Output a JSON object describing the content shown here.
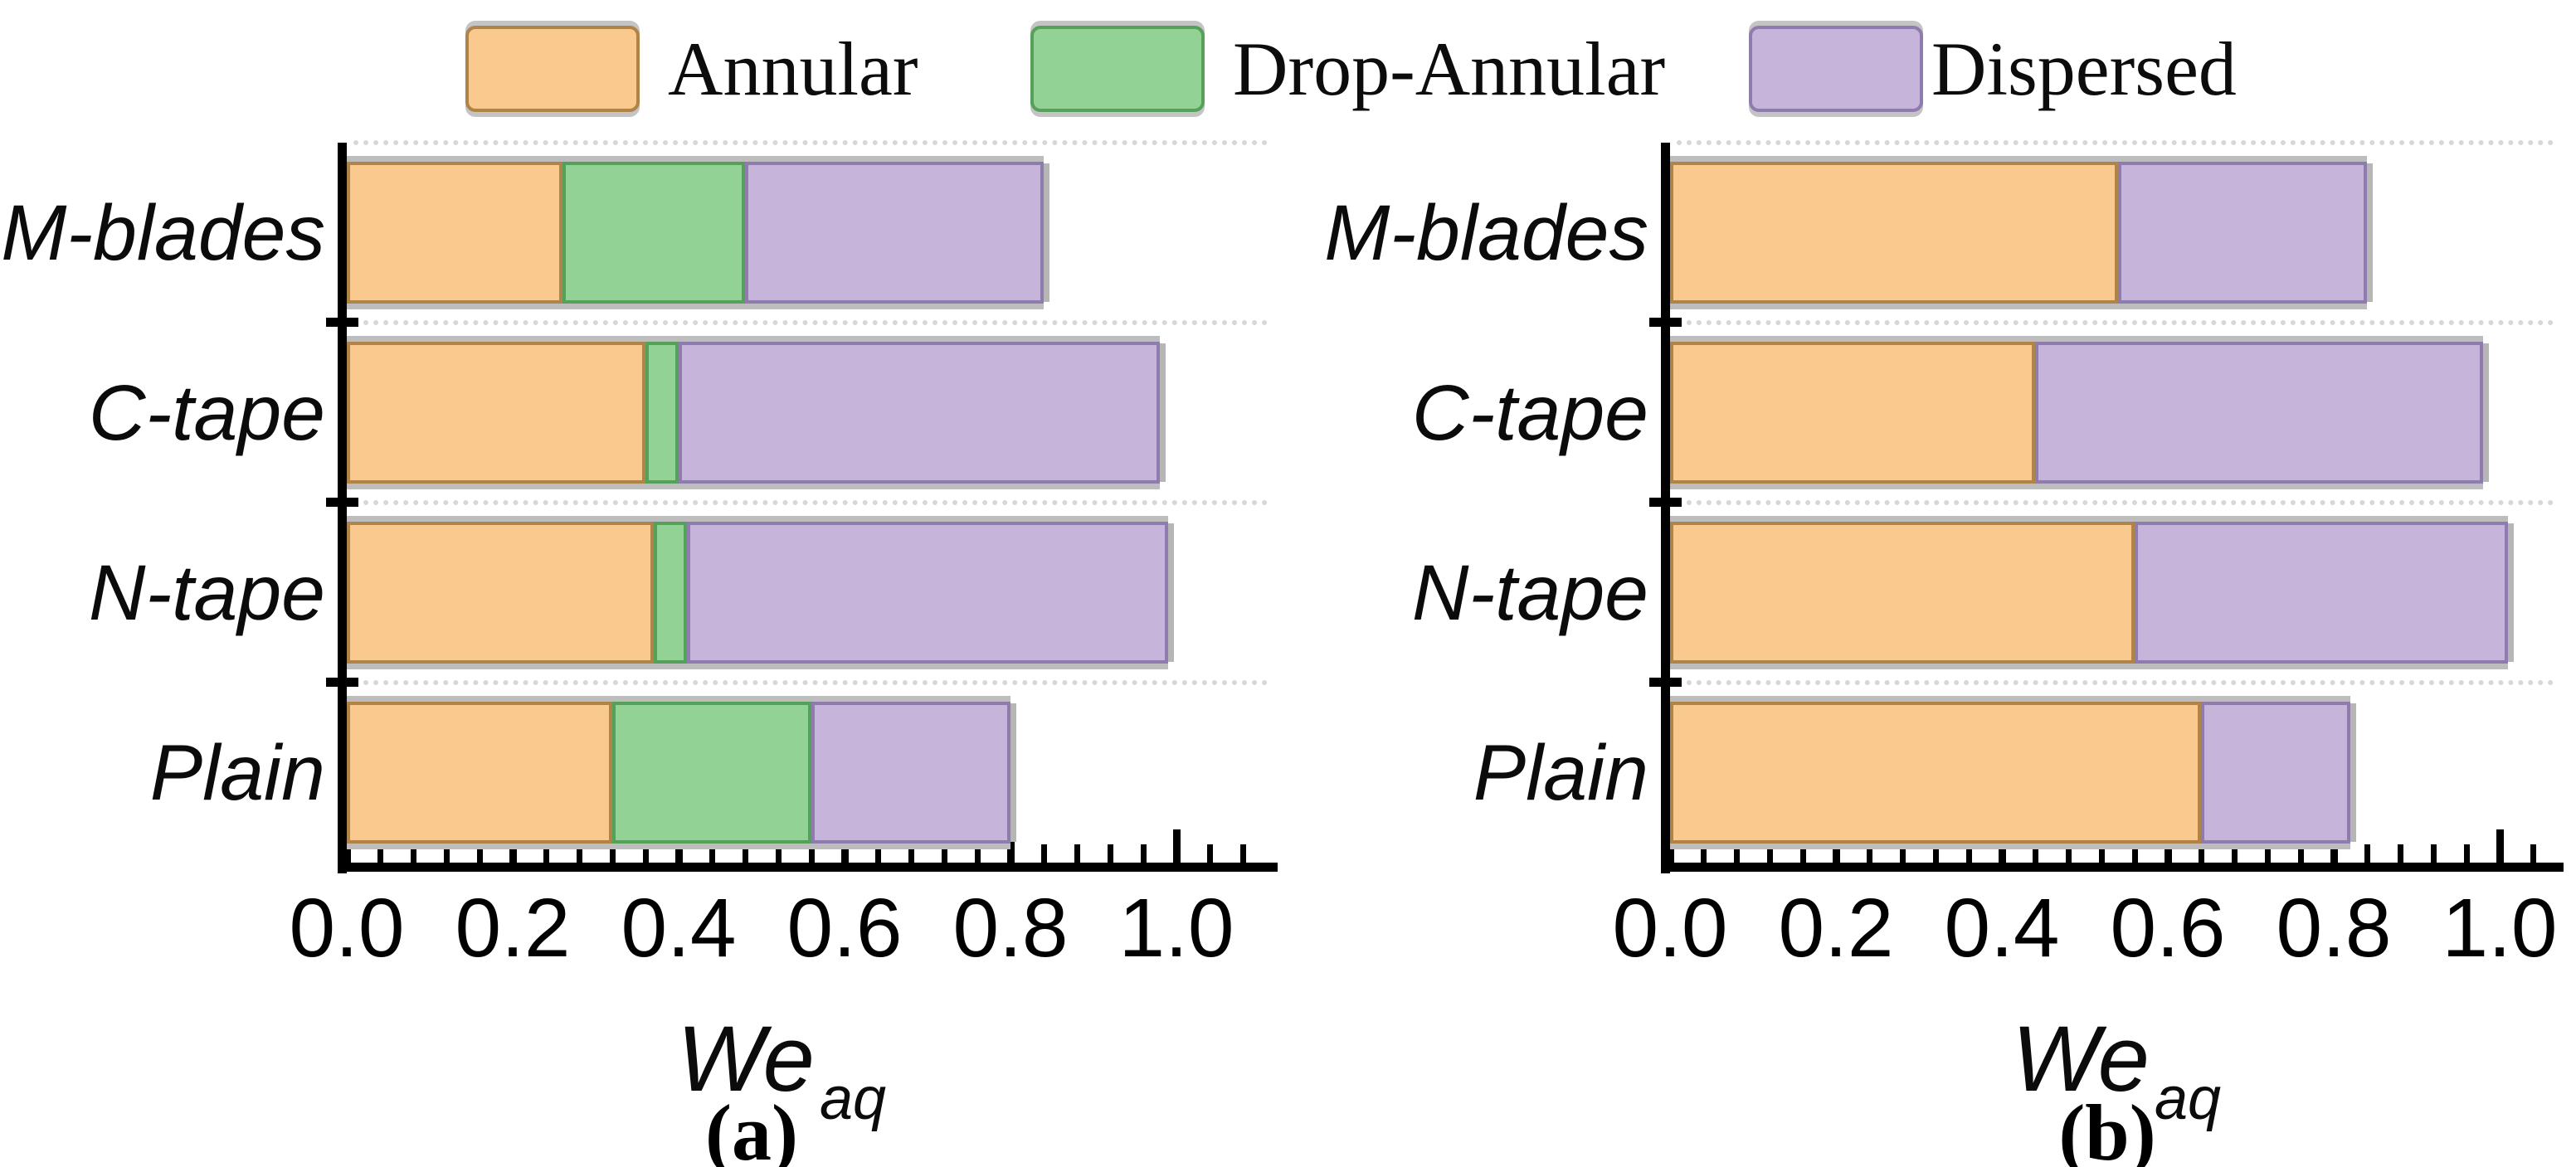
{
  "legend": {
    "items": [
      {
        "label": "Annular",
        "color": "#F9C98D",
        "border": "#B08448"
      },
      {
        "label": "Drop-Annular",
        "color": "#92D294",
        "border": "#55A159"
      },
      {
        "label": "Dispersed",
        "color": "#C6B4DA",
        "border": "#8E7CAE"
      }
    ]
  },
  "xaxis": {
    "label_base": "We",
    "label_sub": "aq",
    "tick_labels": [
      "0.0",
      "0.2",
      "0.4",
      "0.6",
      "0.8",
      "1.0"
    ]
  },
  "panels": [
    {
      "caption": "(a)"
    },
    {
      "caption": "(b)"
    }
  ],
  "chart_data": [
    {
      "type": "bar",
      "orientation": "horizontal",
      "stacked": true,
      "panel": "(a)",
      "xlabel": "We_aq",
      "xlim": [
        0,
        1.1
      ],
      "xticks": [
        "0.0",
        "0.2",
        "0.4",
        "0.6",
        "0.8",
        "1.0"
      ],
      "grid": "dotted-horizontal",
      "legend_position": "top",
      "categories": [
        "M-blades",
        "C-tape",
        "N-tape",
        "Plain"
      ],
      "series": [
        {
          "name": "Annular",
          "values": [
            0.26,
            0.36,
            0.37,
            0.32
          ]
        },
        {
          "name": "Drop-Annular",
          "values": [
            0.22,
            0.04,
            0.04,
            0.24
          ]
        },
        {
          "name": "Dispersed",
          "values": [
            0.36,
            0.58,
            0.58,
            0.24
          ]
        }
      ]
    },
    {
      "type": "bar",
      "orientation": "horizontal",
      "stacked": true,
      "panel": "(b)",
      "xlabel": "We_aq",
      "xlim": [
        0,
        1.1
      ],
      "xticks": [
        "0.0",
        "0.2",
        "0.4",
        "0.6",
        "0.8",
        "1.0"
      ],
      "grid": "dotted-horizontal",
      "legend_position": "top",
      "categories": [
        "M-blades",
        "C-tape",
        "N-tape",
        "Plain"
      ],
      "series": [
        {
          "name": "Annular",
          "values": [
            0.54,
            0.44,
            0.56,
            0.64
          ]
        },
        {
          "name": "Drop-Annular",
          "values": [
            0.0,
            0.0,
            0.0,
            0.0
          ]
        },
        {
          "name": "Dispersed",
          "values": [
            0.3,
            0.54,
            0.45,
            0.18
          ]
        }
      ]
    }
  ]
}
